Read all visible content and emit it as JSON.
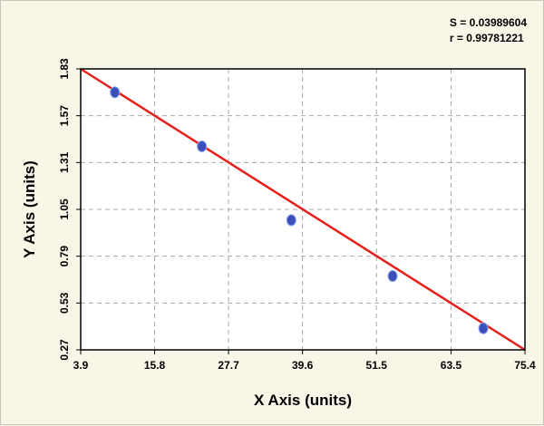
{
  "stats": {
    "s_line": "S = 0.03989604",
    "r_line": "r = 0.99781221"
  },
  "chart_data": {
    "type": "scatter",
    "xlabel": "X Axis (units)",
    "ylabel": "Y Axis (units)",
    "xlim": [
      3.9,
      75.4
    ],
    "ylim": [
      0.27,
      1.83
    ],
    "x_ticks": [
      "3.9",
      "15.8",
      "27.7",
      "39.6",
      "51.5",
      "63.5",
      "75.4"
    ],
    "y_ticks": [
      "0.27",
      "0.53",
      "0.79",
      "1.05",
      "1.31",
      "1.57",
      "1.83"
    ],
    "grid": true,
    "points": {
      "x": [
        9.4,
        23.4,
        37.8,
        54.1,
        68.7
      ],
      "y": [
        1.7,
        1.4,
        0.99,
        0.68,
        0.39
      ]
    },
    "fit_line": {
      "x": [
        3.9,
        75.4
      ],
      "y": [
        1.83,
        0.27
      ]
    },
    "colors": {
      "points": "#3a50b8",
      "fit_line": "#e8201c",
      "grid": "#a8a8a8",
      "plot_bg": "#ffffff"
    }
  }
}
